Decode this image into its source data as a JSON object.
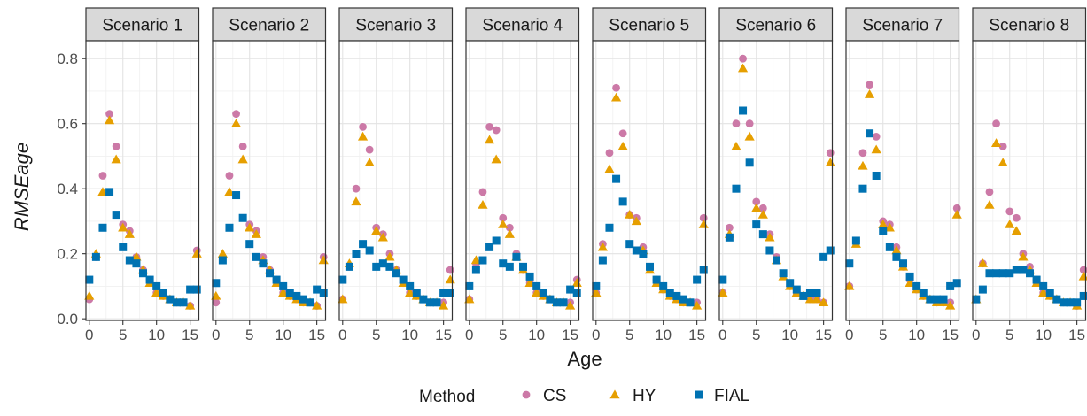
{
  "chart_data": {
    "type": "scatter",
    "xlabel": "Age",
    "ylabel": "RMSEage",
    "xlim": [
      -0.5,
      16.3
    ],
    "ylim": [
      -0.005,
      0.855
    ],
    "x_ticks": [
      0,
      5,
      10,
      15
    ],
    "y_ticks": [
      0.0,
      0.2,
      0.4,
      0.6,
      0.8
    ],
    "y_tick_labels": [
      "0.0",
      "0.2",
      "0.4",
      "0.6",
      "0.8"
    ],
    "grid": true,
    "legend": {
      "title": "Method",
      "position": "bottom",
      "entries": [
        {
          "label": "CS",
          "shape": "circle",
          "color": "#CC79A7"
        },
        {
          "label": "HY",
          "shape": "triangle",
          "color": "#E69F00"
        },
        {
          "label": "FIAL",
          "shape": "square",
          "color": "#0072B2"
        }
      ]
    },
    "x": [
      0,
      1,
      2,
      3,
      4,
      5,
      6,
      7,
      8,
      9,
      10,
      11,
      12,
      13,
      14,
      15,
      16
    ],
    "panels": [
      {
        "title": "Scenario 1",
        "series": [
          {
            "name": "CS",
            "values": [
              0.06,
              0.19,
              0.44,
              0.63,
              0.53,
              0.29,
              0.27,
              0.19,
              0.15,
              0.12,
              0.08,
              0.07,
              0.06,
              0.05,
              0.05,
              0.04,
              0.21
            ]
          },
          {
            "name": "HY",
            "values": [
              0.07,
              0.2,
              0.39,
              0.61,
              0.49,
              0.28,
              0.26,
              0.19,
              0.15,
              0.11,
              0.08,
              0.07,
              0.06,
              0.05,
              0.05,
              0.04,
              0.2
            ]
          },
          {
            "name": "FIAL",
            "values": [
              0.12,
              0.19,
              0.28,
              0.39,
              0.32,
              0.22,
              0.18,
              0.17,
              0.14,
              0.12,
              0.1,
              0.08,
              0.06,
              0.05,
              0.05,
              0.09,
              0.09
            ]
          }
        ]
      },
      {
        "title": "Scenario 2",
        "series": [
          {
            "name": "CS",
            "values": [
              0.05,
              0.19,
              0.44,
              0.63,
              0.53,
              0.29,
              0.27,
              0.19,
              0.15,
              0.12,
              0.08,
              0.07,
              0.06,
              0.05,
              0.05,
              0.04,
              0.19
            ]
          },
          {
            "name": "HY",
            "values": [
              0.07,
              0.2,
              0.39,
              0.6,
              0.49,
              0.28,
              0.26,
              0.18,
              0.15,
              0.11,
              0.08,
              0.07,
              0.06,
              0.05,
              0.05,
              0.04,
              0.18
            ]
          },
          {
            "name": "FIAL",
            "values": [
              0.11,
              0.18,
              0.28,
              0.38,
              0.31,
              0.23,
              0.19,
              0.17,
              0.14,
              0.12,
              0.1,
              0.08,
              0.07,
              0.06,
              0.05,
              0.09,
              0.08
            ]
          }
        ]
      },
      {
        "title": "Scenario 3",
        "series": [
          {
            "name": "CS",
            "values": [
              0.06,
              0.16,
              0.4,
              0.59,
              0.52,
              0.28,
              0.26,
              0.2,
              0.15,
              0.11,
              0.08,
              0.07,
              0.06,
              0.05,
              0.05,
              0.05,
              0.15
            ]
          },
          {
            "name": "HY",
            "values": [
              0.06,
              0.17,
              0.36,
              0.56,
              0.48,
              0.27,
              0.25,
              0.19,
              0.15,
              0.11,
              0.08,
              0.07,
              0.06,
              0.05,
              0.05,
              0.04,
              0.12
            ]
          },
          {
            "name": "FIAL",
            "values": [
              0.12,
              0.16,
              0.2,
              0.23,
              0.21,
              0.16,
              0.17,
              0.16,
              0.14,
              0.12,
              0.1,
              0.08,
              0.06,
              0.05,
              0.05,
              0.08,
              0.08
            ]
          }
        ]
      },
      {
        "title": "Scenario 4",
        "series": [
          {
            "name": "CS",
            "values": [
              0.06,
              0.17,
              0.39,
              0.59,
              0.58,
              0.31,
              0.28,
              0.2,
              0.15,
              0.11,
              0.08,
              0.07,
              0.06,
              0.05,
              0.05,
              0.05,
              0.12
            ]
          },
          {
            "name": "HY",
            "values": [
              0.06,
              0.18,
              0.35,
              0.55,
              0.49,
              0.29,
              0.26,
              0.19,
              0.15,
              0.11,
              0.08,
              0.07,
              0.06,
              0.05,
              0.05,
              0.04,
              0.11
            ]
          },
          {
            "name": "FIAL",
            "values": [
              0.1,
              0.15,
              0.18,
              0.22,
              0.24,
              0.17,
              0.16,
              0.19,
              0.16,
              0.13,
              0.1,
              0.08,
              0.06,
              0.05,
              0.05,
              0.09,
              0.08
            ]
          }
        ]
      },
      {
        "title": "Scenario 5",
        "series": [
          {
            "name": "CS",
            "values": [
              0.08,
              0.23,
              0.51,
              0.71,
              0.57,
              0.32,
              0.31,
              0.22,
              0.16,
              0.12,
              0.09,
              0.07,
              0.06,
              0.05,
              0.05,
              0.05,
              0.31
            ]
          },
          {
            "name": "HY",
            "values": [
              0.08,
              0.22,
              0.46,
              0.68,
              0.53,
              0.32,
              0.3,
              0.21,
              0.15,
              0.11,
              0.09,
              0.07,
              0.06,
              0.05,
              0.05,
              0.04,
              0.29
            ]
          },
          {
            "name": "FIAL",
            "values": [
              0.1,
              0.18,
              0.28,
              0.43,
              0.36,
              0.23,
              0.21,
              0.2,
              0.16,
              0.12,
              0.1,
              0.08,
              0.07,
              0.06,
              0.05,
              0.12,
              0.15
            ]
          }
        ]
      },
      {
        "title": "Scenario 6",
        "series": [
          {
            "name": "CS",
            "values": [
              0.08,
              0.28,
              0.6,
              0.8,
              0.6,
              0.36,
              0.34,
              0.26,
              0.19,
              0.14,
              0.1,
              0.08,
              0.07,
              0.06,
              0.06,
              0.05,
              0.51
            ]
          },
          {
            "name": "HY",
            "values": [
              0.08,
              0.26,
              0.53,
              0.77,
              0.56,
              0.34,
              0.32,
              0.25,
              0.18,
              0.13,
              0.1,
              0.08,
              0.07,
              0.06,
              0.06,
              0.05,
              0.48
            ]
          },
          {
            "name": "FIAL",
            "values": [
              0.12,
              0.25,
              0.4,
              0.64,
              0.48,
              0.29,
              0.26,
              0.21,
              0.18,
              0.14,
              0.11,
              0.09,
              0.07,
              0.08,
              0.08,
              0.19,
              0.21
            ]
          }
        ]
      },
      {
        "title": "Scenario 7",
        "series": [
          {
            "name": "CS",
            "values": [
              0.1,
              0.24,
              0.51,
              0.72,
              0.56,
              0.3,
              0.29,
              0.22,
              0.16,
              0.12,
              0.09,
              0.07,
              0.06,
              0.05,
              0.05,
              0.05,
              0.34
            ]
          },
          {
            "name": "HY",
            "values": [
              0.1,
              0.23,
              0.47,
              0.69,
              0.52,
              0.29,
              0.28,
              0.21,
              0.16,
              0.11,
              0.09,
              0.07,
              0.06,
              0.05,
              0.05,
              0.04,
              0.32
            ]
          },
          {
            "name": "FIAL",
            "values": [
              0.17,
              0.24,
              0.4,
              0.57,
              0.44,
              0.27,
              0.22,
              0.19,
              0.17,
              0.13,
              0.1,
              0.08,
              0.06,
              0.06,
              0.06,
              0.1,
              0.11
            ]
          }
        ]
      },
      {
        "title": "Scenario 8",
        "series": [
          {
            "name": "CS",
            "values": [
              0.06,
              0.17,
              0.39,
              0.6,
              0.53,
              0.33,
              0.31,
              0.2,
              0.16,
              0.12,
              0.08,
              0.07,
              0.06,
              0.05,
              0.05,
              0.04,
              0.15
            ]
          },
          {
            "name": "HY",
            "values": [
              0.06,
              0.17,
              0.35,
              0.54,
              0.48,
              0.29,
              0.27,
              0.19,
              0.15,
              0.11,
              0.08,
              0.07,
              0.06,
              0.05,
              0.05,
              0.04,
              0.13
            ]
          },
          {
            "name": "FIAL",
            "values": [
              0.06,
              0.09,
              0.14,
              0.14,
              0.14,
              0.14,
              0.15,
              0.15,
              0.14,
              0.12,
              0.1,
              0.08,
              0.06,
              0.05,
              0.05,
              0.05,
              0.07
            ]
          }
        ]
      }
    ]
  }
}
